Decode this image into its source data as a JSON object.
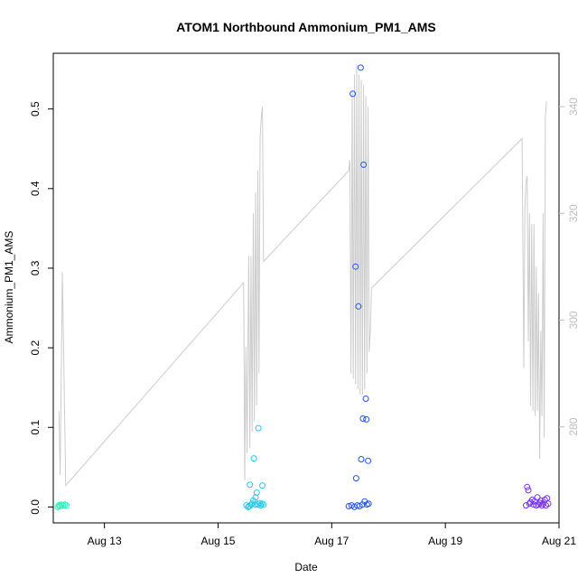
{
  "chart_data": {
    "type": "scatter",
    "title": "ATOM1 Northbound Ammonium_PM1_AMS",
    "xlabel": "Date",
    "ylabel": "Ammonium_PM1_AMS",
    "x_axis": {
      "unit": "day-of-August",
      "range": [
        12.1,
        21.0
      ],
      "ticks": [
        13,
        15,
        17,
        19,
        21
      ],
      "tick_labels": [
        "Aug 13",
        "Aug 15",
        "Aug 17",
        "Aug 19",
        "Aug 21"
      ]
    },
    "y_axis_left": {
      "range": [
        -0.02,
        0.57
      ],
      "ticks": [
        0.0,
        0.1,
        0.2,
        0.3,
        0.4,
        0.5
      ],
      "tick_labels": [
        "0.0",
        "0.1",
        "0.2",
        "0.3",
        "0.4",
        "0.5"
      ]
    },
    "y_axis_right": {
      "range": [
        262,
        350
      ],
      "ticks": [
        280,
        300,
        320,
        340
      ],
      "tick_labels": [
        "280",
        "300",
        "320",
        "340"
      ],
      "color": "#bdbdbd"
    },
    "grid": false,
    "line_color": "#cccccc",
    "series": [
      {
        "marker": "open-circle",
        "color": "#33eebb",
        "points": [
          [
            12.18,
            0.0
          ],
          [
            12.2,
            0.002
          ],
          [
            12.22,
            0.001
          ],
          [
            12.24,
            0.003
          ],
          [
            12.27,
            0.002
          ],
          [
            12.3,
            0.003
          ],
          [
            12.33,
            0.002
          ]
        ]
      },
      {
        "marker": "open-circle",
        "color": "#22c8ee",
        "points": [
          [
            15.5,
            0.002
          ],
          [
            15.53,
            0.0
          ],
          [
            15.55,
            0.001
          ],
          [
            15.56,
            0.028
          ],
          [
            15.58,
            0.003
          ],
          [
            15.6,
            0.004
          ],
          [
            15.62,
            0.008
          ],
          [
            15.63,
            0.061
          ],
          [
            15.65,
            0.003
          ],
          [
            15.66,
            0.012
          ],
          [
            15.68,
            0.018
          ],
          [
            15.7,
            0.003
          ],
          [
            15.71,
            0.099
          ],
          [
            15.73,
            0.005
          ],
          [
            15.75,
            0.002
          ],
          [
            15.77,
            0.004
          ],
          [
            15.78,
            0.027
          ],
          [
            15.8,
            0.003
          ]
        ]
      },
      {
        "marker": "open-circle",
        "color": "#2255ee",
        "points": [
          [
            17.3,
            0.001
          ],
          [
            17.35,
            0.002
          ],
          [
            17.37,
            0.519
          ],
          [
            17.4,
            0.0
          ],
          [
            17.42,
            0.302
          ],
          [
            17.43,
            0.036
          ],
          [
            17.45,
            0.002
          ],
          [
            17.47,
            0.252
          ],
          [
            17.49,
            0.001
          ],
          [
            17.51,
            0.552
          ],
          [
            17.52,
            0.06
          ],
          [
            17.54,
            0.003
          ],
          [
            17.55,
            0.111
          ],
          [
            17.56,
            0.43
          ],
          [
            17.58,
            0.007
          ],
          [
            17.6,
            0.136
          ],
          [
            17.61,
            0.11
          ],
          [
            17.62,
            0.003
          ],
          [
            17.64,
            0.058
          ],
          [
            17.65,
            0.004
          ]
        ]
      },
      {
        "marker": "open-circle",
        "color": "#7733ee",
        "points": [
          [
            20.42,
            0.002
          ],
          [
            20.44,
            0.025
          ],
          [
            20.46,
            0.021
          ],
          [
            20.48,
            0.004
          ],
          [
            20.5,
            0.006
          ],
          [
            20.53,
            0.009
          ],
          [
            20.55,
            0.003
          ],
          [
            20.57,
            0.007
          ],
          [
            20.6,
            0.002
          ],
          [
            20.62,
            0.012
          ],
          [
            20.64,
            0.003
          ],
          [
            20.66,
            0.005
          ],
          [
            20.68,
            0.008
          ],
          [
            20.7,
            0.002
          ],
          [
            20.72,
            0.004
          ],
          [
            20.75,
            0.009
          ],
          [
            20.77,
            0.002
          ],
          [
            20.79,
            0.011
          ],
          [
            20.81,
            0.004
          ]
        ]
      }
    ],
    "line_series": {
      "axis": "right",
      "color": "#cccccc",
      "points": [
        [
          12.2,
          283
        ],
        [
          12.22,
          271
        ],
        [
          12.26,
          309
        ],
        [
          12.32,
          269
        ],
        [
          15.45,
          307
        ],
        [
          15.47,
          270
        ],
        [
          15.49,
          295
        ],
        [
          15.51,
          275
        ],
        [
          15.54,
          312
        ],
        [
          15.56,
          276
        ],
        [
          15.58,
          312
        ],
        [
          15.6,
          279
        ],
        [
          15.62,
          320
        ],
        [
          15.64,
          281
        ],
        [
          15.66,
          324
        ],
        [
          15.68,
          284
        ],
        [
          15.7,
          328
        ],
        [
          15.72,
          290
        ],
        [
          15.74,
          334
        ],
        [
          15.76,
          338
        ],
        [
          15.78,
          340
        ],
        [
          15.8,
          311
        ],
        [
          17.3,
          328
        ],
        [
          17.32,
          330
        ],
        [
          17.34,
          290
        ],
        [
          17.36,
          343
        ],
        [
          17.38,
          289
        ],
        [
          17.4,
          346
        ],
        [
          17.42,
          288
        ],
        [
          17.44,
          348
        ],
        [
          17.46,
          287
        ],
        [
          17.48,
          346
        ],
        [
          17.5,
          286
        ],
        [
          17.52,
          345
        ],
        [
          17.54,
          286
        ],
        [
          17.56,
          344
        ],
        [
          17.58,
          287
        ],
        [
          17.6,
          342
        ],
        [
          17.62,
          290
        ],
        [
          17.64,
          340
        ],
        [
          17.66,
          294
        ],
        [
          17.68,
          298
        ],
        [
          17.7,
          306
        ],
        [
          20.35,
          334
        ],
        [
          20.38,
          291
        ],
        [
          20.4,
          321
        ],
        [
          20.42,
          326
        ],
        [
          20.44,
          327
        ],
        [
          20.46,
          296
        ],
        [
          20.48,
          320
        ],
        [
          20.5,
          284
        ],
        [
          20.52,
          318
        ],
        [
          20.54,
          283
        ],
        [
          20.56,
          318
        ],
        [
          20.58,
          282
        ],
        [
          20.6,
          310
        ],
        [
          20.62,
          283
        ],
        [
          20.64,
          305
        ],
        [
          20.66,
          274
        ],
        [
          20.68,
          298
        ],
        [
          20.7,
          282
        ],
        [
          20.72,
          320
        ],
        [
          20.74,
          278
        ],
        [
          20.76,
          338
        ],
        [
          20.78,
          341
        ]
      ]
    }
  }
}
